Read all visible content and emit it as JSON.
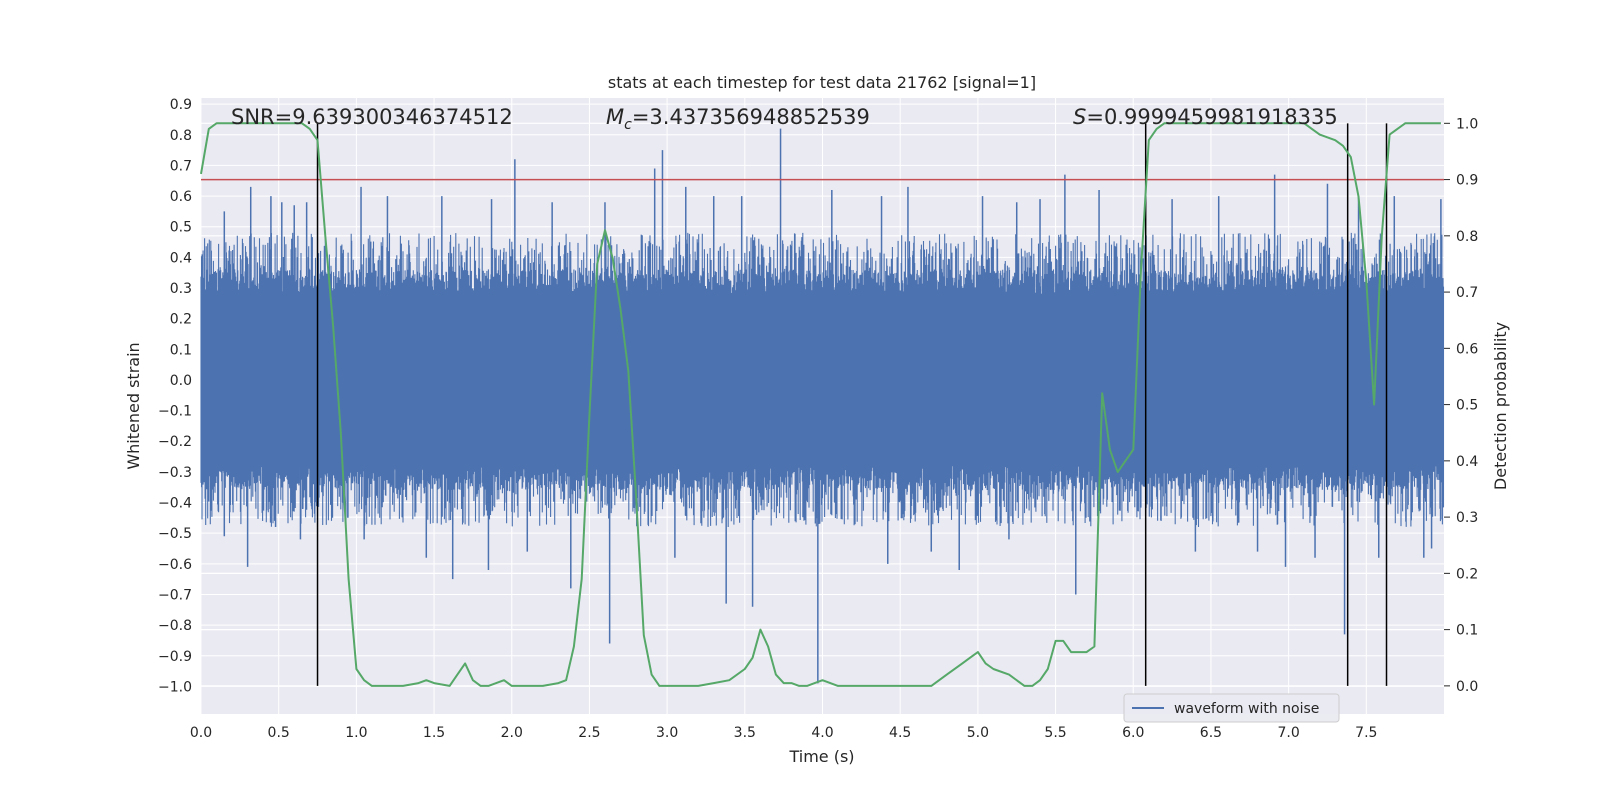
{
  "chart_data": {
    "type": "line",
    "title": "stats at each timestep for test data 21762 [signal=1]",
    "xlabel": "Time (s)",
    "ylabel": "Whitened strain",
    "y2label": "Detection probability",
    "xlim": [
      0.0,
      8.0
    ],
    "ylim": [
      -1.09,
      0.92
    ],
    "y2lim": [
      -0.05,
      1.045
    ],
    "x_ticks": [
      0.0,
      0.5,
      1.0,
      1.5,
      2.0,
      2.5,
      3.0,
      3.5,
      4.0,
      4.5,
      5.0,
      5.5,
      6.0,
      6.5,
      7.0,
      7.5
    ],
    "x_tick_labels": [
      "0.0",
      "0.5",
      "1.0",
      "1.5",
      "2.0",
      "2.5",
      "3.0",
      "3.5",
      "4.0",
      "4.5",
      "5.0",
      "5.5",
      "6.0",
      "6.5",
      "7.0",
      "7.5"
    ],
    "y_ticks": [
      0.9,
      0.8,
      0.7,
      0.6,
      0.5,
      0.4,
      0.3,
      0.2,
      0.1,
      0.0,
      -0.1,
      -0.2,
      -0.3,
      -0.4,
      -0.5,
      -0.6,
      -0.7,
      -0.8,
      -0.9,
      -1.0
    ],
    "y_tick_labels": [
      "0.9",
      "0.8",
      "0.7",
      "0.6",
      "0.5",
      "0.4",
      "0.3",
      "0.2",
      "0.1",
      "0.0",
      "−0.1",
      "−0.2",
      "−0.3",
      "−0.4",
      "−0.5",
      "−0.6",
      "−0.7",
      "−0.8",
      "−0.9",
      "−1.0"
    ],
    "y2_ticks": [
      1.0,
      0.9,
      0.8,
      0.7,
      0.6,
      0.5,
      0.4,
      0.3,
      0.2,
      0.1,
      0.0
    ],
    "y2_tick_labels": [
      "1.0",
      "0.9",
      "0.8",
      "0.7",
      "0.6",
      "0.5",
      "0.4",
      "0.3",
      "0.2",
      "0.1",
      "0.0"
    ],
    "grid": true,
    "legend": {
      "position": "lower-right",
      "entries": [
        "waveform with noise"
      ]
    },
    "annotations": {
      "snr": "SNR=9.639300346374512",
      "mc_symbol": "M",
      "mc_sub": "c",
      "mc_value": "=3.437356948852539",
      "s_symbol": "S",
      "s_value": "=0.9999459981918335"
    },
    "threshold": {
      "value": 0.9,
      "color": "#c44e52"
    },
    "vertical_lines": [
      0.75,
      6.08,
      7.38,
      7.63
    ],
    "waveform": {
      "name": "waveform with noise",
      "color": "#4c72b0",
      "duration": 8.0,
      "core_envelope": 0.28,
      "peaks": [
        [
          0.15,
          0.55
        ],
        [
          0.32,
          0.63
        ],
        [
          0.45,
          0.6
        ],
        [
          0.52,
          0.58
        ],
        [
          0.6,
          0.57
        ],
        [
          0.68,
          0.58
        ],
        [
          1.03,
          0.63
        ],
        [
          1.2,
          0.6
        ],
        [
          1.55,
          0.6
        ],
        [
          1.87,
          0.59
        ],
        [
          2.02,
          0.72
        ],
        [
          2.26,
          0.58
        ],
        [
          2.6,
          0.58
        ],
        [
          2.92,
          0.69
        ],
        [
          2.97,
          0.75
        ],
        [
          3.12,
          0.63
        ],
        [
          3.3,
          0.6
        ],
        [
          3.48,
          0.6
        ],
        [
          3.73,
          0.82
        ],
        [
          4.06,
          0.62
        ],
        [
          4.38,
          0.6
        ],
        [
          4.55,
          0.63
        ],
        [
          5.03,
          0.6
        ],
        [
          5.25,
          0.58
        ],
        [
          5.4,
          0.59
        ],
        [
          5.56,
          0.67
        ],
        [
          5.78,
          0.62
        ],
        [
          6.25,
          0.59
        ],
        [
          6.55,
          0.6
        ],
        [
          6.91,
          0.67
        ],
        [
          7.25,
          0.64
        ],
        [
          7.45,
          0.6
        ],
        [
          7.68,
          0.6
        ],
        [
          7.98,
          0.59
        ]
      ],
      "troughs": [
        [
          0.15,
          -0.51
        ],
        [
          0.3,
          -0.61
        ],
        [
          0.48,
          -0.48
        ],
        [
          0.64,
          -0.52
        ],
        [
          1.05,
          -0.52
        ],
        [
          1.45,
          -0.58
        ],
        [
          1.62,
          -0.65
        ],
        [
          1.85,
          -0.62
        ],
        [
          2.1,
          -0.56
        ],
        [
          2.38,
          -0.68
        ],
        [
          2.63,
          -0.86
        ],
        [
          3.05,
          -0.58
        ],
        [
          3.38,
          -0.73
        ],
        [
          3.55,
          -0.74
        ],
        [
          3.97,
          -0.99
        ],
        [
          4.42,
          -0.6
        ],
        [
          4.7,
          -0.56
        ],
        [
          4.88,
          -0.62
        ],
        [
          5.2,
          -0.52
        ],
        [
          5.63,
          -0.7
        ],
        [
          6.4,
          -0.56
        ],
        [
          6.8,
          -0.56
        ],
        [
          6.98,
          -0.61
        ],
        [
          7.17,
          -0.58
        ],
        [
          7.36,
          -0.83
        ],
        [
          7.58,
          -0.58
        ],
        [
          7.87,
          -0.58
        ],
        [
          7.92,
          -0.55
        ]
      ]
    },
    "probability": {
      "name": "detection probability",
      "color": "#55a868",
      "x": [
        0.0,
        0.05,
        0.1,
        0.2,
        0.3,
        0.4,
        0.5,
        0.6,
        0.65,
        0.7,
        0.75,
        0.8,
        0.85,
        0.9,
        0.95,
        1.0,
        1.05,
        1.1,
        1.2,
        1.3,
        1.4,
        1.45,
        1.5,
        1.6,
        1.65,
        1.7,
        1.75,
        1.8,
        1.85,
        1.9,
        1.95,
        2.0,
        2.05,
        2.1,
        2.2,
        2.3,
        2.35,
        2.4,
        2.45,
        2.5,
        2.55,
        2.6,
        2.65,
        2.7,
        2.75,
        2.8,
        2.85,
        2.9,
        2.95,
        3.0,
        3.1,
        3.2,
        3.3,
        3.4,
        3.5,
        3.55,
        3.6,
        3.65,
        3.7,
        3.75,
        3.8,
        3.85,
        3.9,
        3.95,
        4.0,
        4.1,
        4.2,
        4.3,
        4.4,
        4.5,
        4.6,
        4.7,
        4.8,
        4.9,
        4.95,
        5.0,
        5.05,
        5.1,
        5.2,
        5.3,
        5.35,
        5.4,
        5.45,
        5.5,
        5.55,
        5.6,
        5.7,
        5.75,
        5.8,
        5.85,
        5.9,
        5.95,
        6.0,
        6.05,
        6.1,
        6.15,
        6.2,
        6.3,
        6.4,
        6.5,
        6.6,
        6.7,
        6.8,
        6.9,
        7.0,
        7.1,
        7.15,
        7.2,
        7.3,
        7.35,
        7.4,
        7.45,
        7.5,
        7.55,
        7.6,
        7.65,
        7.7,
        7.75,
        7.8,
        7.9,
        7.98
      ],
      "y": [
        0.91,
        0.99,
        1.0,
        1.0,
        1.0,
        1.0,
        1.0,
        1.0,
        1.0,
        0.99,
        0.97,
        0.8,
        0.64,
        0.45,
        0.19,
        0.03,
        0.01,
        0.0,
        0.0,
        0.0,
        0.005,
        0.01,
        0.005,
        0.0,
        0.02,
        0.04,
        0.01,
        0.0,
        0.0,
        0.005,
        0.01,
        0.0,
        0.0,
        0.0,
        0.0,
        0.005,
        0.01,
        0.07,
        0.19,
        0.48,
        0.75,
        0.81,
        0.76,
        0.67,
        0.56,
        0.34,
        0.09,
        0.02,
        0.0,
        0.0,
        0.0,
        0.0,
        0.005,
        0.01,
        0.03,
        0.05,
        0.1,
        0.07,
        0.02,
        0.005,
        0.005,
        0.0,
        0.0,
        0.005,
        0.01,
        0.0,
        0.0,
        0.0,
        0.0,
        0.0,
        0.0,
        0.0,
        0.02,
        0.04,
        0.05,
        0.06,
        0.04,
        0.03,
        0.02,
        0.0,
        0.0,
        0.01,
        0.03,
        0.08,
        0.08,
        0.06,
        0.06,
        0.07,
        0.52,
        0.42,
        0.38,
        0.4,
        0.42,
        0.74,
        0.97,
        0.99,
        1.0,
        1.0,
        1.0,
        1.0,
        1.0,
        1.0,
        1.0,
        1.0,
        1.0,
        1.0,
        0.99,
        0.98,
        0.97,
        0.96,
        0.94,
        0.87,
        0.72,
        0.5,
        0.8,
        0.98,
        0.99,
        1.0,
        1.0,
        1.0,
        1.0
      ]
    }
  }
}
